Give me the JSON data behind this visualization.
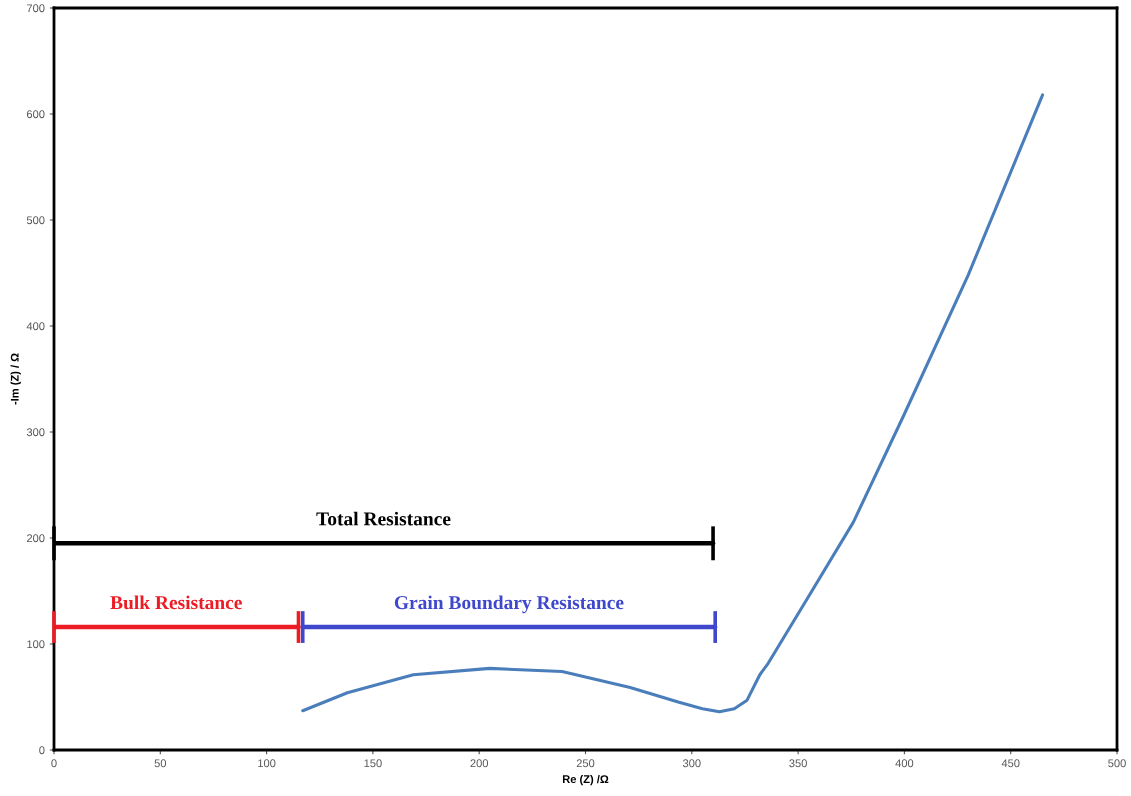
{
  "chart_data": {
    "type": "line",
    "xlabel": "Re (Z) /Ω",
    "ylabel": "-Im (Z) / Ω",
    "xlim": [
      0,
      500
    ],
    "xticks": [
      0,
      50,
      100,
      150,
      200,
      250,
      300,
      350,
      400,
      450,
      500
    ],
    "ylim": [
      0,
      700
    ],
    "yticks": [
      0,
      100,
      200,
      300,
      400,
      500,
      600,
      700
    ],
    "grid": false,
    "legend": false,
    "marker": "none",
    "line_style": "solid",
    "series": [
      {
        "color": "#4a7ebb",
        "x": [
          117,
          138,
          169,
          205,
          239,
          271,
          294,
          305,
          313,
          320,
          326,
          332,
          336,
          355,
          376,
          400,
          430,
          465
        ],
        "values": [
          37,
          54,
          71,
          77,
          74,
          59,
          45,
          39,
          36,
          39,
          47,
          71,
          82,
          145,
          215,
          317,
          448,
          618
        ]
      },
      {
        "name": "Total Resistance",
        "color": "#000000",
        "x": [
          0,
          310
        ],
        "values": [
          195,
          195
        ],
        "errors": [
          16,
          16
        ]
      },
      {
        "name": "Bulk Resistance",
        "color": "#ed1c24",
        "x": [
          0,
          115
        ],
        "values": [
          116,
          116
        ],
        "errors": [
          15,
          15
        ]
      },
      {
        "name": "Grain Boundary Resistance",
        "color": "#3f48cc",
        "x": [
          117,
          311
        ],
        "values": [
          116,
          116
        ],
        "errors": [
          15,
          15
        ]
      }
    ]
  }
}
